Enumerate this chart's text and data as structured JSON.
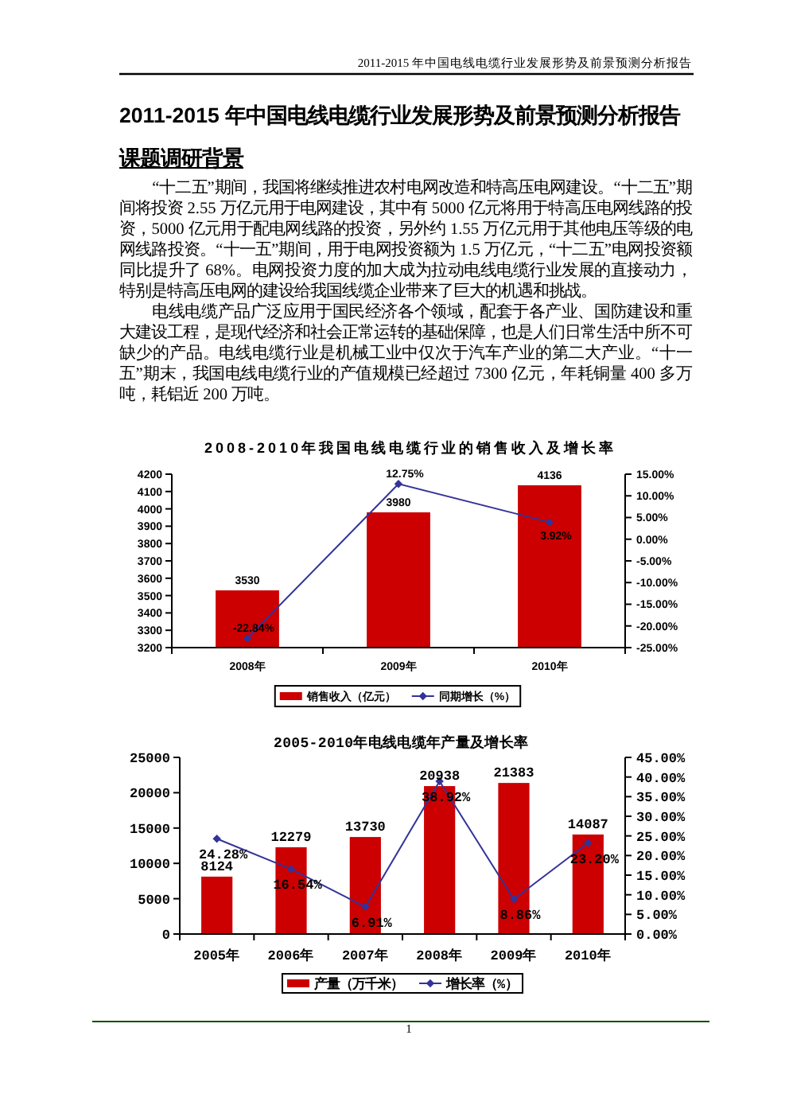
{
  "chart_data": [
    {
      "type": "other",
      "title": "2011-2015 年中国电线电缆行业发展形势及前景预测分析报告",
      "annotations": [
        "2011-2015 年中国电线电缆行业发展形势及前景预测分析报告",
        "课题调研背景",
        "“十二五”期间，我国将继续推进农村电网改造和特高压电网建设。“十二五”期间将投资 2.55 万亿元用于电网建设，其中有 5000 亿元将用于特高压电网线路的投资，5000 亿元用于配电网线路的投资，另外约 1.55 万亿元用于其他电压等级的电网线路投资。“十一五”期间，用于电网投资额为 1.5 万亿元，“十二五”电网投资额同比提升了 68%。电网投资力度的加大成为拉动电线电缆行业发展的直接动力，特别是特高压电网的建设给我国线缆企业带来了巨大的机遇和挑战。",
        "电线电缆产品广泛应用于国民经济各个领域，配套于各产业、国防建设和重大建设工程，是现代经济和社会正常运转的基础保障，也是人们日常生活中所不可缺少的产品。电线电缆行业是机械工业中仅次于汽车产业的第二大产业。“十一五”期末，我国电线电缆行业的产值规模已经超过 7300 亿元，年耗铜量 400 多万吨，耗铝近 200 万吨。",
        "1"
      ]
    },
    {
      "type": "bar",
      "title": "2008-2010年我国电线电缆行业的销售收入及增长率",
      "categories": [
        "2008年",
        "2009年",
        "2010年"
      ],
      "series": [
        {
          "type": "bar",
          "name": "销售收入（亿元）",
          "color": "#cc0000",
          "values": [
            3530,
            3980,
            4136
          ],
          "value_labels": [
            "3530",
            "3980",
            "4136"
          ]
        },
        {
          "type": "line",
          "axis": "y2",
          "name": "同期增长（%）",
          "color": "#333399",
          "values": [
            -22.84,
            12.75,
            3.92
          ],
          "value_labels": [
            "-22.84%",
            "12.75%",
            "3.92%"
          ]
        }
      ],
      "ylim": [
        3200,
        4200
      ],
      "yticks": [
        3200,
        3300,
        3400,
        3500,
        3600,
        3700,
        3800,
        3900,
        4000,
        4100,
        4200
      ],
      "y2lim": [
        -25,
        15
      ],
      "y2ticks": [
        {
          "value": -25,
          "label": "-25.00%"
        },
        {
          "value": -20,
          "label": "-20.00%"
        },
        {
          "value": -15,
          "label": "-15.00%"
        },
        {
          "value": -10,
          "label": "-10.00%"
        },
        {
          "value": -5,
          "label": "-5.00%"
        },
        {
          "value": 0,
          "label": "0.00%"
        },
        {
          "value": 5,
          "label": "5.00%"
        },
        {
          "value": 10,
          "label": "10.00%"
        },
        {
          "value": 15,
          "label": "15.00%"
        }
      ],
      "legend": "bottom",
      "marker": "diamond"
    },
    {
      "type": "bar",
      "title": "2005-2010年电线电缆年产量及增长率",
      "categories": [
        "2005年",
        "2006年",
        "2007年",
        "2008年",
        "2009年",
        "2010年"
      ],
      "series": [
        {
          "type": "bar",
          "name": "产量（万千米）",
          "color": "#cc0000",
          "values": [
            8124,
            12279,
            13730,
            20938,
            21383,
            14087
          ],
          "value_labels": [
            "8124",
            "12279",
            "13730",
            "20938",
            "21383",
            "14087"
          ]
        },
        {
          "type": "line",
          "axis": "y2",
          "name": "增长率（%）",
          "color": "#333399",
          "values": [
            24.28,
            16.54,
            6.91,
            38.92,
            8.86,
            23.2
          ],
          "value_labels": [
            "24.28%",
            "16.54%",
            "6.91%",
            "38.92%",
            "8.86%",
            "23.20%"
          ]
        }
      ],
      "ylim": [
        0,
        25000
      ],
      "yticks": [
        0,
        5000,
        10000,
        15000,
        20000,
        25000
      ],
      "y2lim": [
        0,
        45
      ],
      "y2ticks": [
        {
          "value": 0,
          "label": "0.00%"
        },
        {
          "value": 5,
          "label": "5.00%"
        },
        {
          "value": 10,
          "label": "10.00%"
        },
        {
          "value": 15,
          "label": "15.00%"
        },
        {
          "value": 20,
          "label": "20.00%"
        },
        {
          "value": 25,
          "label": "25.00%"
        },
        {
          "value": 30,
          "label": "30.00%"
        },
        {
          "value": 35,
          "label": "35.00%"
        },
        {
          "value": 40,
          "label": "40.00%"
        },
        {
          "value": 45,
          "label": "45.00%"
        }
      ],
      "legend": "bottom",
      "marker": "diamond"
    }
  ]
}
